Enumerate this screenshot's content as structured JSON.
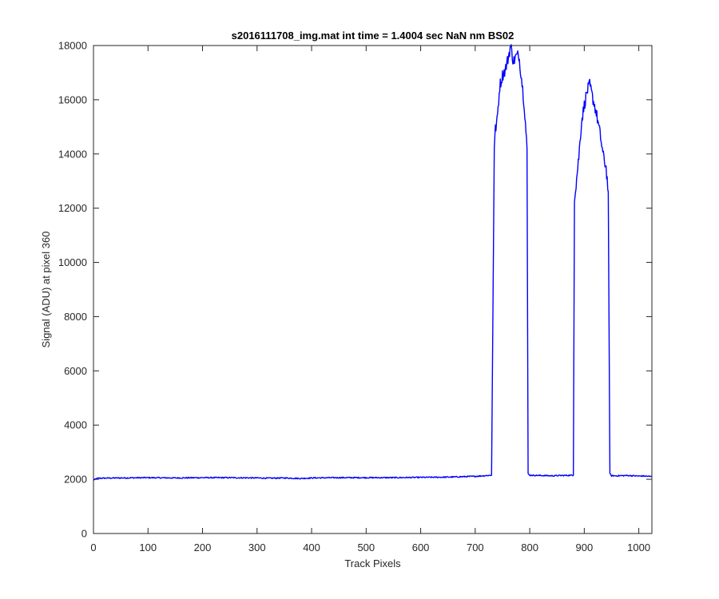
{
  "chart_data": {
    "type": "line",
    "title": "s2016111708_img.mat int time = 1.4004 sec  NaN nm BS02",
    "xlabel": "Track Pixels",
    "ylabel": "Signal (ADU) at pixel 360",
    "xlim": [
      0,
      1024
    ],
    "ylim": [
      0,
      18000
    ],
    "xticks": [
      0,
      100,
      200,
      300,
      400,
      500,
      600,
      700,
      800,
      900,
      1000
    ],
    "yticks": [
      0,
      2000,
      4000,
      6000,
      8000,
      10000,
      12000,
      14000,
      16000,
      18000
    ],
    "grid": false,
    "legend": "none",
    "series": [
      {
        "color": "#0000ff",
        "x": [
          0,
          2,
          5,
          10,
          50,
          100,
          150,
          200,
          250,
          300,
          320,
          350,
          380,
          400,
          450,
          500,
          550,
          600,
          650,
          700,
          730,
          735,
          737,
          740,
          745,
          750,
          755,
          760,
          765,
          770,
          775,
          780,
          785,
          790,
          795,
          797,
          800,
          820,
          840,
          860,
          880,
          882,
          885,
          890,
          895,
          900,
          905,
          910,
          915,
          920,
          925,
          930,
          935,
          940,
          944,
          947,
          950,
          960,
          980,
          1000,
          1010,
          1024
        ],
        "y": [
          2000,
          1980,
          2020,
          2040,
          2050,
          2060,
          2050,
          2060,
          2060,
          2050,
          2040,
          2050,
          2030,
          2050,
          2060,
          2060,
          2060,
          2070,
          2080,
          2110,
          2150,
          14300,
          14900,
          15200,
          16500,
          16900,
          17100,
          17500,
          18000,
          17400,
          17600,
          17650,
          16800,
          15800,
          14200,
          2200,
          2150,
          2140,
          2130,
          2140,
          2150,
          12400,
          12900,
          13900,
          15200,
          15800,
          16300,
          16550,
          16100,
          15700,
          15200,
          14600,
          13900,
          13500,
          12600,
          2200,
          2130,
          2130,
          2140,
          2120,
          2120,
          2100
        ]
      }
    ]
  }
}
